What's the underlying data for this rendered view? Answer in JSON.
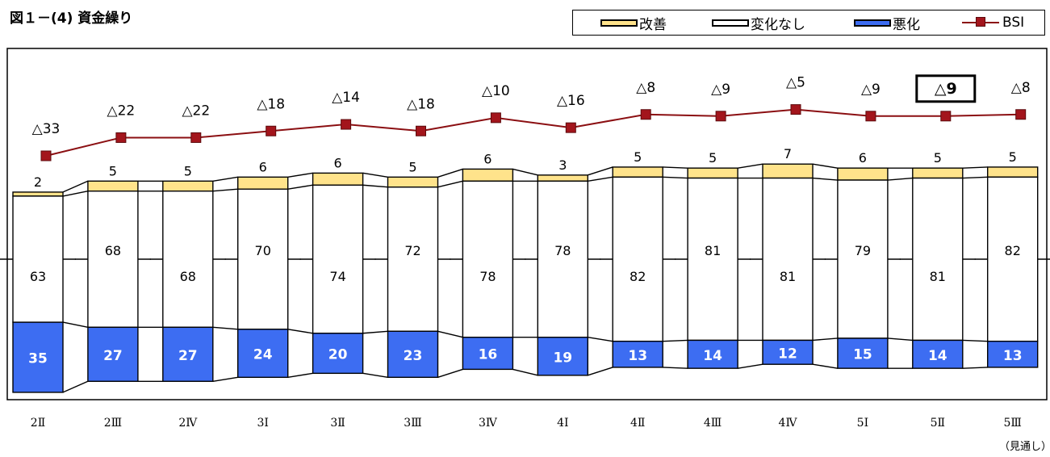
{
  "figure": {
    "title": "図１－(4)  資金繰り",
    "footnote": "（見通し）"
  },
  "legend": {
    "items": [
      {
        "label": "改善",
        "color": "#ffe38b"
      },
      {
        "label": "変化なし",
        "color": "#ffffff"
      },
      {
        "label": "悪化",
        "color": "#3d6df2"
      },
      {
        "label": "BSI",
        "color": "#a3151c"
      }
    ]
  },
  "chart_data": {
    "type": "bar",
    "stacked": true,
    "categories": [
      "2Ⅱ",
      "2Ⅲ",
      "2Ⅳ",
      "3Ⅰ",
      "3Ⅱ",
      "3Ⅲ",
      "3Ⅳ",
      "4Ⅰ",
      "4Ⅱ",
      "4Ⅲ",
      "4Ⅳ",
      "5Ⅰ",
      "5Ⅱ",
      "5Ⅲ"
    ],
    "series": [
      {
        "name": "悪化",
        "values": [
          35,
          27,
          27,
          24,
          20,
          23,
          16,
          19,
          13,
          14,
          12,
          15,
          14,
          13
        ],
        "color": "#3d6df2"
      },
      {
        "name": "変化なし",
        "values": [
          63,
          68,
          68,
          70,
          74,
          72,
          78,
          78,
          82,
          81,
          81,
          79,
          81,
          82
        ],
        "color": "#ffffff"
      },
      {
        "name": "改善",
        "values": [
          2,
          5,
          5,
          6,
          6,
          5,
          6,
          3,
          5,
          5,
          7,
          6,
          5,
          5
        ],
        "color": "#ffe38b"
      }
    ],
    "bsi": {
      "name": "BSI",
      "values": [
        -33,
        -22,
        -22,
        -18,
        -14,
        -18,
        -10,
        -16,
        -8,
        -9,
        -5,
        -9,
        -9,
        -8
      ],
      "labels": [
        "△33",
        "△22",
        "△22",
        "△18",
        "△14",
        "△18",
        "△10",
        "△16",
        "△8",
        "△9",
        "△5",
        "△9",
        "△9",
        "△8"
      ],
      "color": "#a3151c",
      "highlight_index": 12
    },
    "legend_position": "top-right"
  }
}
